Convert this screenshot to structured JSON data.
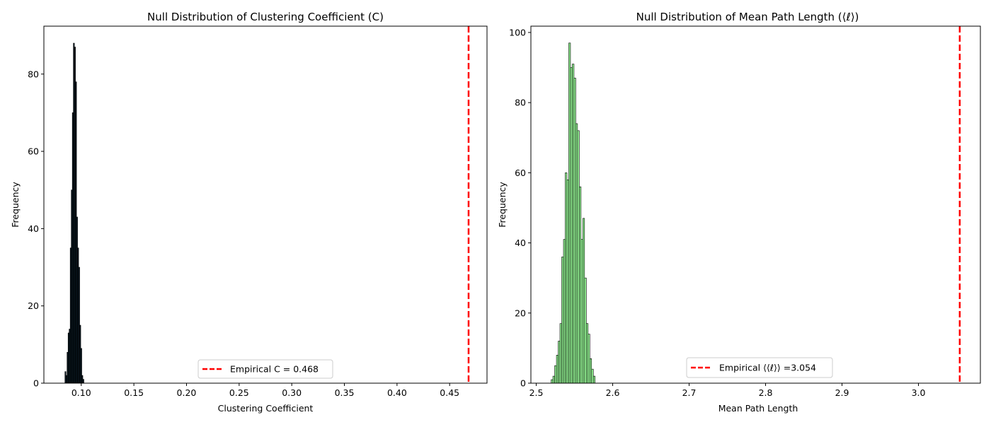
{
  "chart_data": [
    {
      "type": "bar",
      "title": "Null Distribution of Clustering Coefficient (C)",
      "xlabel": "Clustering Coefficient",
      "ylabel": "Frequency",
      "xlim": [
        0.0645,
        0.4855
      ],
      "ylim": [
        0,
        92.4
      ],
      "xticks": [
        0.1,
        0.15,
        0.2,
        0.25,
        0.3,
        0.35,
        0.4,
        0.45
      ],
      "xtick_labels": [
        "0.10",
        "0.15",
        "0.20",
        "0.25",
        "0.30",
        "0.35",
        "0.40",
        "0.45"
      ],
      "yticks": [
        0,
        20,
        40,
        60,
        80
      ],
      "ytick_labels": [
        "0",
        "20",
        "40",
        "60",
        "80"
      ],
      "bar_color": "#0a1a24",
      "edge_color": "#000000",
      "bars": [
        {
          "x0": 0.0845,
          "x1": 0.0855,
          "y": 3
        },
        {
          "x0": 0.0855,
          "x1": 0.0865,
          "y": 2
        },
        {
          "x0": 0.0865,
          "x1": 0.0875,
          "y": 8
        },
        {
          "x0": 0.0875,
          "x1": 0.0885,
          "y": 13
        },
        {
          "x0": 0.0885,
          "x1": 0.0895,
          "y": 14
        },
        {
          "x0": 0.0895,
          "x1": 0.0905,
          "y": 35
        },
        {
          "x0": 0.0905,
          "x1": 0.0915,
          "y": 50
        },
        {
          "x0": 0.0915,
          "x1": 0.0925,
          "y": 70
        },
        {
          "x0": 0.0925,
          "x1": 0.0935,
          "y": 88
        },
        {
          "x0": 0.0935,
          "x1": 0.0945,
          "y": 87
        },
        {
          "x0": 0.0945,
          "x1": 0.0955,
          "y": 78
        },
        {
          "x0": 0.0955,
          "x1": 0.0965,
          "y": 43
        },
        {
          "x0": 0.0965,
          "x1": 0.0975,
          "y": 35
        },
        {
          "x0": 0.0975,
          "x1": 0.0985,
          "y": 30
        },
        {
          "x0": 0.0985,
          "x1": 0.0995,
          "y": 15
        },
        {
          "x0": 0.0995,
          "x1": 0.1005,
          "y": 9
        },
        {
          "x0": 0.1005,
          "x1": 0.1015,
          "y": 2
        },
        {
          "x0": 0.1015,
          "x1": 0.1025,
          "y": 1
        }
      ],
      "empirical_line": {
        "x": 0.468,
        "color": "#ff0000"
      },
      "legend": {
        "label": "Empirical C = 0.468",
        "position": "lower-center"
      },
      "grid": false
    },
    {
      "type": "bar",
      "title": "Null Distribution of Mean Path Length (⟨ℓ⟩)",
      "xlabel": "Mean Path Length",
      "ylabel": "Frequency",
      "xlim": [
        2.493,
        3.081
      ],
      "ylim": [
        0,
        101.8
      ],
      "xticks": [
        2.5,
        2.6,
        2.7,
        2.8,
        2.9,
        3.0
      ],
      "xtick_labels": [
        "2.5",
        "2.6",
        "2.7",
        "2.8",
        "2.9",
        "3.0"
      ],
      "yticks": [
        0,
        20,
        40,
        60,
        80,
        100
      ],
      "ytick_labels": [
        "0",
        "20",
        "40",
        "60",
        "80",
        "100"
      ],
      "bar_color": "#90ee90",
      "edge_color": "#000000",
      "bars": [
        {
          "x0": 2.5195,
          "x1": 2.5218,
          "y": 1
        },
        {
          "x0": 2.5218,
          "x1": 2.5241,
          "y": 2
        },
        {
          "x0": 2.5241,
          "x1": 2.5264,
          "y": 5
        },
        {
          "x0": 2.5264,
          "x1": 2.5287,
          "y": 8
        },
        {
          "x0": 2.5287,
          "x1": 2.531,
          "y": 12
        },
        {
          "x0": 2.531,
          "x1": 2.5333,
          "y": 17
        },
        {
          "x0": 2.5333,
          "x1": 2.5356,
          "y": 36
        },
        {
          "x0": 2.5356,
          "x1": 2.5379,
          "y": 41
        },
        {
          "x0": 2.5379,
          "x1": 2.5402,
          "y": 60
        },
        {
          "x0": 2.5402,
          "x1": 2.5425,
          "y": 58
        },
        {
          "x0": 2.5425,
          "x1": 2.5448,
          "y": 97
        },
        {
          "x0": 2.5448,
          "x1": 2.5471,
          "y": 90
        },
        {
          "x0": 2.5471,
          "x1": 2.5494,
          "y": 91
        },
        {
          "x0": 2.5494,
          "x1": 2.5517,
          "y": 87
        },
        {
          "x0": 2.5517,
          "x1": 2.554,
          "y": 74
        },
        {
          "x0": 2.554,
          "x1": 2.5563,
          "y": 72
        },
        {
          "x0": 2.5563,
          "x1": 2.5586,
          "y": 56
        },
        {
          "x0": 2.5586,
          "x1": 2.5609,
          "y": 41
        },
        {
          "x0": 2.5609,
          "x1": 2.5632,
          "y": 47
        },
        {
          "x0": 2.5632,
          "x1": 2.5655,
          "y": 30
        },
        {
          "x0": 2.5655,
          "x1": 2.5678,
          "y": 17
        },
        {
          "x0": 2.5678,
          "x1": 2.5701,
          "y": 14
        },
        {
          "x0": 2.5701,
          "x1": 2.5724,
          "y": 7
        },
        {
          "x0": 2.5724,
          "x1": 2.5747,
          "y": 4
        },
        {
          "x0": 2.5747,
          "x1": 2.577,
          "y": 2
        }
      ],
      "empirical_line": {
        "x": 3.054,
        "color": "#ff0000"
      },
      "legend": {
        "label": "Empirical ⟨⟨ℓ⟩⟩ =3.054",
        "position": "lower-center"
      },
      "grid": false
    }
  ]
}
